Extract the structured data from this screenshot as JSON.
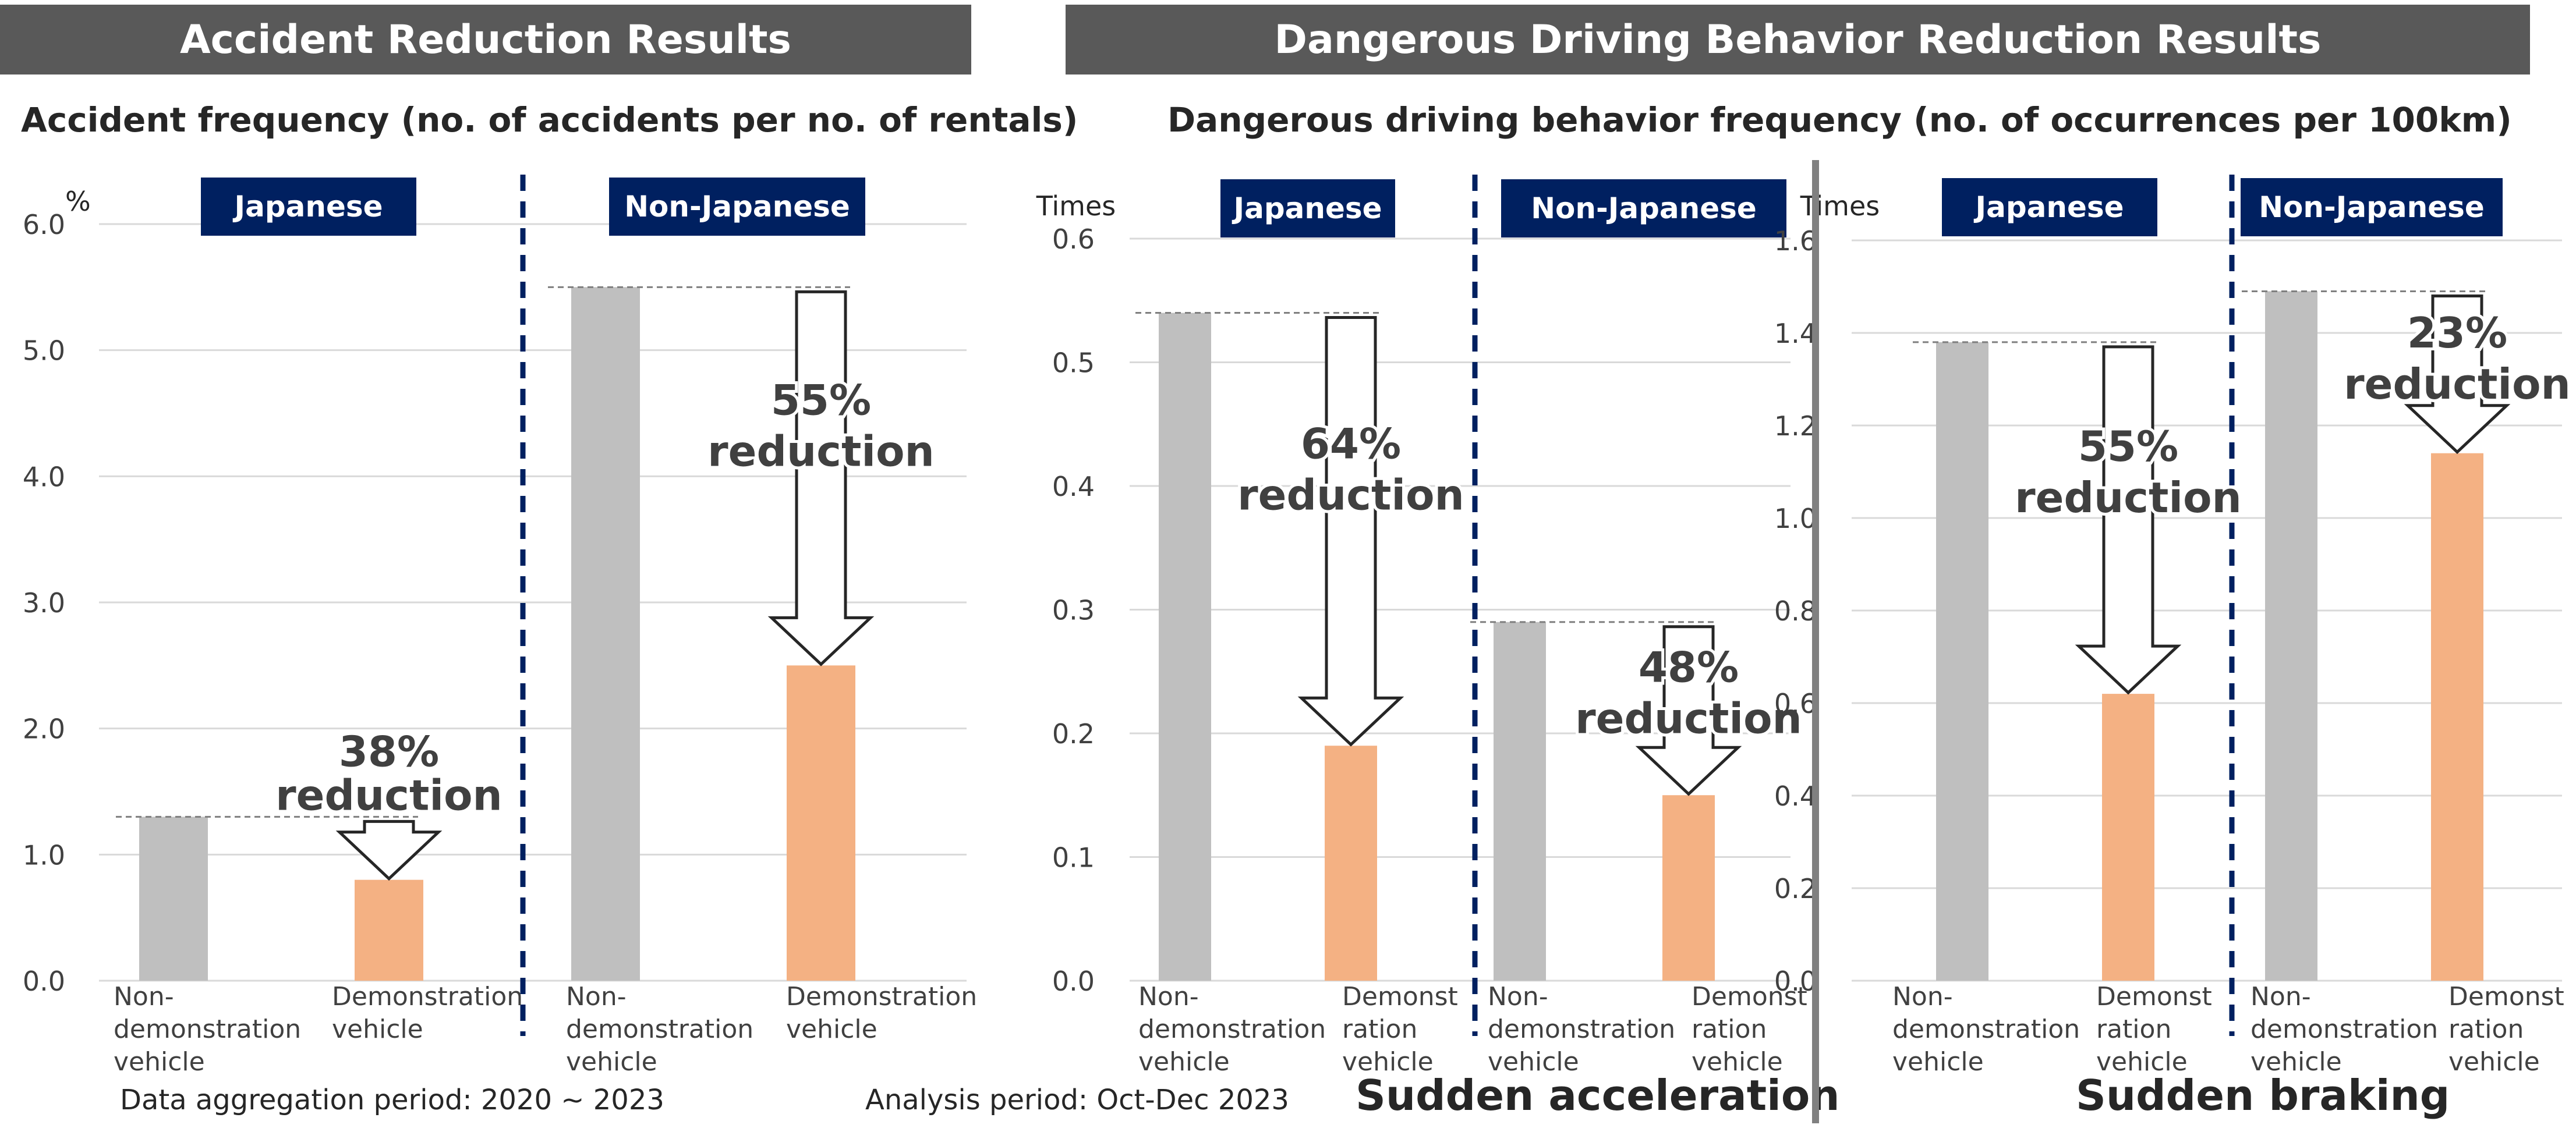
{
  "headers": {
    "left": "Accident Reduction Results",
    "right": "Dangerous Driving Behavior Reduction Results"
  },
  "subtitles": {
    "left": "Accident frequency (no. of accidents per no. of rentals)",
    "right": "Dangerous driving behavior frequency (no. of occurrences per 100km)"
  },
  "footnotes": {
    "left": "Data aggregation period: 2020 ~ 2023",
    "right": "Analysis period: Oct-Dec 2023"
  },
  "colors": {
    "header_bg": "#595959",
    "group_label_bg": "#002060",
    "non_demo_bar": "#bfbfbf",
    "demo_bar": "#f4b183",
    "divider": "#002060",
    "separator": "#808080"
  },
  "chart_data": [
    {
      "type": "bar",
      "title": "",
      "unit": "%",
      "ylim": [
        0,
        6
      ],
      "yticks": [
        "0.0",
        "1.0",
        "2.0",
        "3.0",
        "4.0",
        "5.0",
        "6.0"
      ],
      "groups": [
        "Japanese",
        "Non-Japanese"
      ],
      "categories": [
        [
          "Non-",
          "demonstration",
          "vehicle"
        ],
        [
          "Demonstration",
          "vehicle"
        ]
      ],
      "series": [
        {
          "group": "Japanese",
          "values": [
            1.3,
            0.8
          ],
          "reduction": [
            "38%",
            "reduction"
          ]
        },
        {
          "group": "Non-Japanese",
          "values": [
            5.5,
            2.5
          ],
          "reduction": [
            "55%",
            "reduction"
          ]
        }
      ]
    },
    {
      "type": "bar",
      "title": "Sudden acceleration",
      "unit": "Times",
      "ylim": [
        0,
        0.6
      ],
      "yticks": [
        "0.0",
        "0.1",
        "0.2",
        "0.3",
        "0.4",
        "0.5",
        "0.6"
      ],
      "groups": [
        "Japanese",
        "Non-Japanese"
      ],
      "categories": [
        [
          "Non-",
          "demonstration",
          "vehicle"
        ],
        [
          "Demonst",
          "ration",
          "vehicle"
        ]
      ],
      "series": [
        {
          "group": "Japanese",
          "values": [
            0.54,
            0.19
          ],
          "reduction": [
            "64%",
            "reduction"
          ]
        },
        {
          "group": "Non-Japanese",
          "values": [
            0.29,
            0.15
          ],
          "reduction": [
            "48%",
            "reduction"
          ]
        }
      ]
    },
    {
      "type": "bar",
      "title": "Sudden braking",
      "unit": "Times",
      "ylim": [
        0,
        1.6
      ],
      "yticks": [
        "0.0",
        "0.2",
        "0.4",
        "0.6",
        "0.8",
        "1.0",
        "1.2",
        "1.4",
        "1.6"
      ],
      "groups": [
        "Japanese",
        "Non-Japanese"
      ],
      "categories": [
        [
          "Non-",
          "demonstration",
          "vehicle"
        ],
        [
          "Demonst",
          "ration",
          "vehicle"
        ]
      ],
      "series": [
        {
          "group": "Japanese",
          "values": [
            1.38,
            0.62
          ],
          "reduction": [
            "55%",
            "reduction"
          ]
        },
        {
          "group": "Non-Japanese",
          "values": [
            1.49,
            1.14
          ],
          "reduction": [
            "23%",
            "reduction"
          ]
        }
      ]
    }
  ]
}
